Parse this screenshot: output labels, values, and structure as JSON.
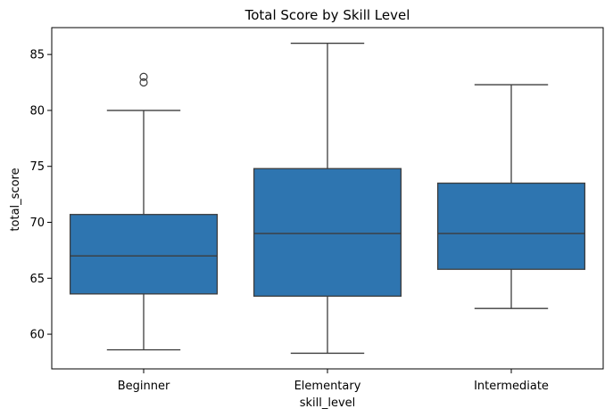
{
  "chart_data": {
    "type": "box",
    "title": "Total Score by Skill Level",
    "xlabel": "skill_level",
    "ylabel": "total_score",
    "categories": [
      "Beginner",
      "Elementary",
      "Intermediate"
    ],
    "ylim": [
      56.9,
      87.4
    ],
    "yticks": [
      60,
      65,
      70,
      75,
      80,
      85
    ],
    "ytick_labels": [
      "60",
      "65",
      "70",
      "75",
      "80",
      "85"
    ],
    "box_color": "#2e75b0",
    "line_color": "#3d3d3d",
    "grid": false,
    "boxes": [
      {
        "category": "Beginner",
        "whisker_low": 58.6,
        "q1": 63.6,
        "median": 67.0,
        "q3": 70.7,
        "whisker_high": 80.0,
        "outliers": [
          82.5,
          83.0
        ]
      },
      {
        "category": "Elementary",
        "whisker_low": 58.3,
        "q1": 63.4,
        "median": 69.0,
        "q3": 74.8,
        "whisker_high": 86.0,
        "outliers": []
      },
      {
        "category": "Intermediate",
        "whisker_low": 62.3,
        "q1": 65.8,
        "median": 69.0,
        "q3": 73.5,
        "whisker_high": 82.3,
        "outliers": []
      }
    ]
  }
}
